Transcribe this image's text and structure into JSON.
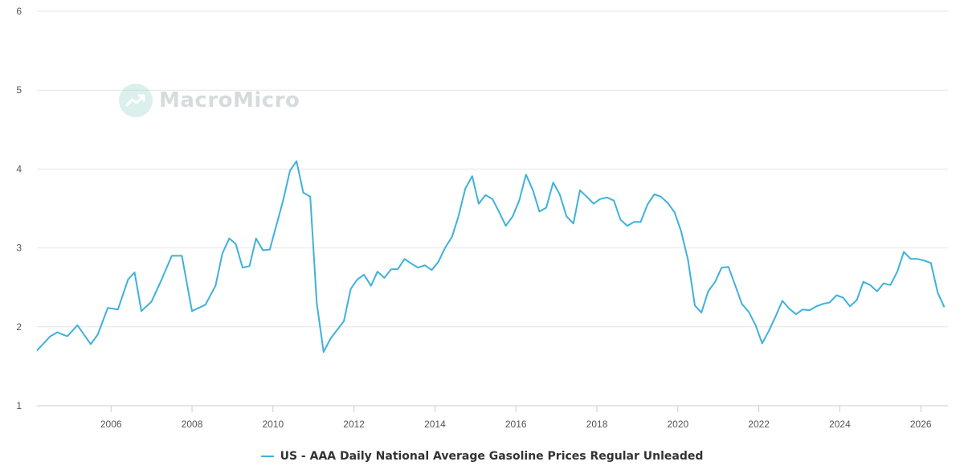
{
  "watermark": {
    "text": "MacroMicro"
  },
  "colors": {
    "series": "#3fb1db",
    "grid": "#e6e6e6",
    "axis_text": "#555555"
  },
  "chart_data": {
    "type": "line",
    "title": "",
    "xlabel": "",
    "ylabel": "",
    "ylim": [
      1,
      6
    ],
    "yticks": [
      1,
      2,
      3,
      4,
      5,
      6
    ],
    "xlim": [
      2004.17,
      2026.67
    ],
    "xticks": [
      2006,
      2008,
      2010,
      2012,
      2014,
      2016,
      2018,
      2020,
      2022,
      2024,
      2026
    ],
    "grid": true,
    "legend_position": "bottom-center",
    "series": [
      {
        "name": "US - AAA Daily National Average Gasoline Prices Regular Unleaded",
        "points": [
          [
            2004.17,
            1.7
          ],
          [
            2004.5,
            1.88
          ],
          [
            2004.67,
            1.93
          ],
          [
            2004.92,
            1.88
          ],
          [
            2005.17,
            2.02
          ],
          [
            2005.5,
            1.78
          ],
          [
            2005.67,
            1.9
          ],
          [
            2005.92,
            2.24
          ],
          [
            2006.17,
            2.22
          ],
          [
            2006.42,
            2.6
          ],
          [
            2006.58,
            2.69
          ],
          [
            2006.75,
            2.2
          ],
          [
            2007.0,
            2.32
          ],
          [
            2007.25,
            2.6
          ],
          [
            2007.5,
            2.9
          ],
          [
            2007.75,
            2.9
          ],
          [
            2008.0,
            2.2
          ],
          [
            2008.33,
            2.28
          ],
          [
            2008.58,
            2.52
          ],
          [
            2008.75,
            2.93
          ],
          [
            2008.92,
            3.12
          ],
          [
            2009.08,
            3.05
          ],
          [
            2009.25,
            2.75
          ],
          [
            2009.42,
            2.77
          ],
          [
            2009.58,
            3.12
          ],
          [
            2009.75,
            2.97
          ],
          [
            2009.92,
            2.98
          ],
          [
            2010.25,
            3.6
          ],
          [
            2010.42,
            3.98
          ],
          [
            2010.58,
            4.1
          ],
          [
            2010.75,
            3.7
          ],
          [
            2010.92,
            3.65
          ],
          [
            2011.08,
            2.3
          ],
          [
            2011.25,
            1.68
          ],
          [
            2011.42,
            1.85
          ],
          [
            2011.75,
            2.07
          ],
          [
            2011.92,
            2.48
          ],
          [
            2012.08,
            2.6
          ],
          [
            2012.25,
            2.66
          ],
          [
            2012.42,
            2.52
          ],
          [
            2012.58,
            2.7
          ],
          [
            2012.75,
            2.62
          ],
          [
            2012.92,
            2.73
          ],
          [
            2013.08,
            2.73
          ],
          [
            2013.25,
            2.86
          ],
          [
            2013.42,
            2.8
          ],
          [
            2013.58,
            2.75
          ],
          [
            2013.75,
            2.78
          ],
          [
            2013.92,
            2.72
          ],
          [
            2014.08,
            2.82
          ],
          [
            2014.25,
            3.0
          ],
          [
            2014.42,
            3.14
          ],
          [
            2014.58,
            3.4
          ],
          [
            2014.75,
            3.75
          ],
          [
            2014.92,
            3.91
          ],
          [
            2015.08,
            3.56
          ],
          [
            2015.25,
            3.67
          ],
          [
            2015.42,
            3.62
          ],
          [
            2015.58,
            3.46
          ],
          [
            2015.75,
            3.28
          ],
          [
            2015.92,
            3.4
          ],
          [
            2016.08,
            3.6
          ],
          [
            2016.25,
            3.93
          ],
          [
            2016.42,
            3.73
          ],
          [
            2016.58,
            3.46
          ],
          [
            2016.75,
            3.51
          ],
          [
            2016.92,
            3.83
          ],
          [
            2017.08,
            3.68
          ],
          [
            2017.25,
            3.4
          ],
          [
            2017.42,
            3.31
          ],
          [
            2017.58,
            3.73
          ],
          [
            2017.75,
            3.65
          ],
          [
            2017.92,
            3.56
          ],
          [
            2018.08,
            3.62
          ],
          [
            2018.25,
            3.64
          ],
          [
            2018.42,
            3.6
          ],
          [
            2018.58,
            3.36
          ],
          [
            2018.75,
            3.28
          ],
          [
            2018.92,
            3.33
          ],
          [
            2019.08,
            3.33
          ],
          [
            2019.25,
            3.55
          ],
          [
            2019.42,
            3.68
          ],
          [
            2019.58,
            3.65
          ],
          [
            2019.75,
            3.57
          ],
          [
            2019.92,
            3.45
          ],
          [
            2020.08,
            3.21
          ],
          [
            2020.25,
            2.85
          ],
          [
            2020.42,
            2.27
          ],
          [
            2020.58,
            2.18
          ],
          [
            2020.75,
            2.45
          ],
          [
            2020.92,
            2.57
          ],
          [
            2021.08,
            2.75
          ],
          [
            2021.25,
            2.76
          ],
          [
            2021.42,
            2.52
          ],
          [
            2021.58,
            2.29
          ],
          [
            2021.75,
            2.19
          ],
          [
            2021.92,
            2.02
          ],
          [
            2022.08,
            1.79
          ],
          [
            2022.25,
            1.95
          ],
          [
            2022.42,
            2.14
          ],
          [
            2022.58,
            2.33
          ],
          [
            2022.75,
            2.23
          ],
          [
            2022.92,
            2.16
          ],
          [
            2023.08,
            2.22
          ],
          [
            2023.25,
            2.21
          ],
          [
            2023.42,
            2.26
          ],
          [
            2023.58,
            2.29
          ],
          [
            2023.75,
            2.31
          ],
          [
            2023.92,
            2.4
          ],
          [
            2024.08,
            2.37
          ],
          [
            2024.25,
            2.26
          ],
          [
            2024.42,
            2.34
          ],
          [
            2024.58,
            2.57
          ],
          [
            2024.75,
            2.53
          ],
          [
            2024.92,
            2.45
          ],
          [
            2025.08,
            2.55
          ],
          [
            2025.25,
            2.53
          ],
          [
            2025.42,
            2.7
          ],
          [
            2025.58,
            2.95
          ],
          [
            2025.75,
            2.86
          ],
          [
            2025.92,
            2.86
          ],
          [
            2026.08,
            2.84
          ],
          [
            2026.25,
            2.81
          ],
          [
            2026.42,
            2.43
          ],
          [
            2026.58,
            2.25
          ]
        ]
      }
    ]
  }
}
